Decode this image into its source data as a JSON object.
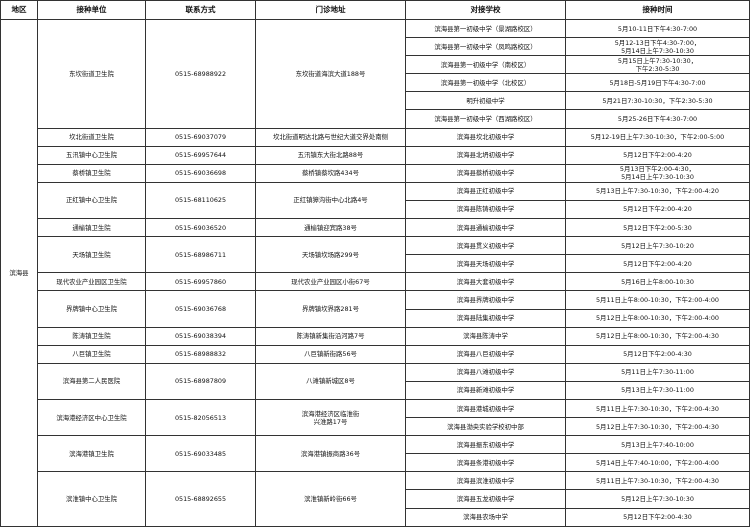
{
  "headers": [
    "地区",
    "接种单位",
    "联系方式",
    "门诊地址",
    "对接学校",
    "接种时间"
  ],
  "region": "滨海县",
  "units": [
    {
      "name": "东坎街道卫生院",
      "phone": "0515-68988922",
      "address": "东坎街道海滨大道188号",
      "schools": [
        {
          "school": "滨海县第一初级中学（景湖路校区）",
          "time": "5月10-11日下午4:30-7:00"
        },
        {
          "school": "滨海县第一初级中学（凤鸣路校区）",
          "time": "5月12-13日下午4:30-7:00，\n5月14日上午7:30-10:30"
        },
        {
          "school": "滨海县第一初级中学（南校区）",
          "time": "5月15日上午7:30-10:30，\n下午2:30-5:30"
        },
        {
          "school": "滨海县第一初级中学（北校区）",
          "time": "5月18日-5月19日下午4:30-7:00"
        },
        {
          "school": "明升初级中学",
          "time": "5月21日7:30-10:30，下午2:30-5:30"
        },
        {
          "school": "滨海县第一初级中学（西湖路校区）",
          "time": "5月25-26日下午4:30-7:00"
        }
      ]
    },
    {
      "name": "坎北街道卫生院",
      "phone": "0515-69037079",
      "address": "坎北街道明达北路与世纪大道交界处南侧",
      "schools": [
        {
          "school": "滨海县坎北初级中学",
          "time": "5月12-19日上午7:30-10:30，下午2:00-5:00"
        }
      ]
    },
    {
      "name": "五汛镇中心卫生院",
      "phone": "0515-69957644",
      "address": "五汛镇东大街北路88号",
      "schools": [
        {
          "school": "滨海县北坍初级中学",
          "time": "5月12日下午2:00-4:20"
        }
      ]
    },
    {
      "name": "蔡桥镇卫生院",
      "phone": "0515-69036698",
      "address": "蔡桥镇蔡坎路434号",
      "schools": [
        {
          "school": "滨海县蔡桥初级中学",
          "time": "5月13日下午2:00-4:30，\n5月14日上午7:30-10:30"
        }
      ]
    },
    {
      "name": "正红镇中心卫生院",
      "phone": "0515-68110625",
      "address": "正红镇獐沟街中心北路4号",
      "schools": [
        {
          "school": "滨海县正红初级中学",
          "time": "5月13日上午7:30-10:30，下午2:00-4:20"
        },
        {
          "school": "滨海县陈铸初级中学",
          "time": "5月12日下午2:00-4:20"
        }
      ]
    },
    {
      "name": "通榆镇卫生院",
      "phone": "0515-69036520",
      "address": "通榆镇迎宾路38号",
      "schools": [
        {
          "school": "滨海县通榆初级中学",
          "time": "5月12日下午2:00-5:30"
        }
      ]
    },
    {
      "name": "天场镇卫生院",
      "phone": "0515-68986711",
      "address": "天场镇坎场路299号",
      "schools": [
        {
          "school": "滨海县贯义初级中学",
          "time": "5月12日上午7:30-10:20"
        },
        {
          "school": "滨海县天场初级中学",
          "time": "5月12日下午2:00-4:20"
        }
      ]
    },
    {
      "name": "现代农业产业园区卫生院",
      "phone": "0515-69957860",
      "address": "现代农业产业园区小街67号",
      "schools": [
        {
          "school": "滨海县大套初级中学",
          "time": "5月16日上午8:00-10:30"
        }
      ]
    },
    {
      "name": "界牌镇中心卫生院",
      "phone": "0515-69036768",
      "address": "界牌镇坎界路281号",
      "schools": [
        {
          "school": "滨海县界牌初级中学",
          "time": "5月11日上午8:00-10:30，下午2:00-4:00"
        },
        {
          "school": "滨海县陆集初级中学",
          "time": "5月12日上午8:00-10:30，下午2:00-4:00"
        }
      ]
    },
    {
      "name": "陈涛镇卫生院",
      "phone": "0515-69038394",
      "address": "陈涛镇新集街沿河路7号",
      "schools": [
        {
          "school": "滨海县陈涛中学",
          "time": "5月12日上午8:00-10:30，下午2:00-4:30"
        }
      ]
    },
    {
      "name": "八巨镇卫生院",
      "phone": "0515-68988832",
      "address": "八巨镇新街路56号",
      "schools": [
        {
          "school": "滨海县八巨初级中学",
          "time": "5月12日下午2:00-4:30"
        }
      ]
    },
    {
      "name": "滨海县第二人民医院",
      "phone": "0515-68987809",
      "address": "八滩镇新城区8号",
      "schools": [
        {
          "school": "滨海县八滩初级中学",
          "time": "5月11日上午7:30-11:00"
        },
        {
          "school": "滨海县新滩初级中学",
          "time": "5月13日上午7:30-11:00"
        }
      ]
    },
    {
      "name": "滨海港经济区中心卫生院",
      "phone": "0515-82056513",
      "address": "滨海港经济区临淮街\n兴淮路17号",
      "schools": [
        {
          "school": "滨海县港城初级中学",
          "time": "5月11日上午7:30-10:30，下午2:00-4:30"
        },
        {
          "school": "滨海县渤央实验学校初中部",
          "time": "5月12日上午7:30-10:30，下午2:00-4:30"
        }
      ]
    },
    {
      "name": "滨海港镇卫生院",
      "phone": "0515-69033485",
      "address": "滨海港镇振商路36号",
      "schools": [
        {
          "school": "滨海县振东初级中学",
          "time": "5月13日上午7:40-10:00"
        },
        {
          "school": "滨海县条港初级中学",
          "time": "5月14日上午7:40-10:00，下午2:00-4:00"
        }
      ]
    },
    {
      "name": "滨淮镇中心卫生院",
      "phone": "0515-68892655",
      "address": "滨淮镇新岭街66号",
      "schools": [
        {
          "school": "滨海县滨淮初级中学",
          "time": "5月11日上午7:30-10:30，下午2:00-4:30"
        },
        {
          "school": "滨海县五龙初级中学",
          "time": "5月12日上午7:30-10:30"
        },
        {
          "school": "滨海县农场中学",
          "time": "5月12日下午2:00-4:30"
        }
      ]
    }
  ]
}
